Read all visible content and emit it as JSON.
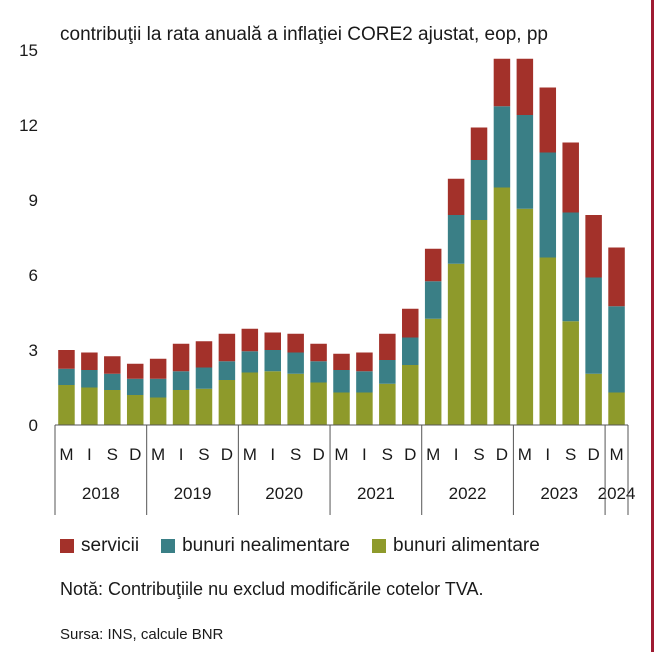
{
  "chart_data": {
    "type": "bar",
    "stacked": true,
    "title": "contribuţii la rata anuală a inflaţiei CORE2 ajustat, eop, pp",
    "ylim": [
      0,
      15
    ],
    "yticks": [
      0,
      3,
      6,
      9,
      12,
      15
    ],
    "ytick_labels": [
      "0",
      "3",
      "6",
      "9",
      "12",
      "15"
    ],
    "categories": [
      "M",
      "I",
      "S",
      "D",
      "M",
      "I",
      "S",
      "D",
      "M",
      "I",
      "S",
      "D",
      "M",
      "I",
      "S",
      "D",
      "M",
      "I",
      "S",
      "D",
      "M",
      "I",
      "S",
      "D",
      "M"
    ],
    "years": [
      {
        "label": "2018",
        "count": 4
      },
      {
        "label": "2019",
        "count": 4
      },
      {
        "label": "2020",
        "count": 4
      },
      {
        "label": "2021",
        "count": 4
      },
      {
        "label": "2022",
        "count": 4
      },
      {
        "label": "2023",
        "count": 4
      },
      {
        "label": "2024",
        "count": 1
      }
    ],
    "series": [
      {
        "name": "bunuri alimentare",
        "color": "#8e9a2b",
        "values": [
          1.6,
          1.5,
          1.4,
          1.2,
          1.1,
          1.4,
          1.45,
          1.8,
          2.1,
          2.15,
          2.05,
          1.7,
          1.3,
          1.3,
          1.65,
          2.4,
          4.25,
          6.45,
          8.2,
          9.5,
          8.65,
          6.7,
          4.15,
          2.05,
          1.3
        ]
      },
      {
        "name": "bunuri nealimentare",
        "color": "#3a7f86",
        "values": [
          0.65,
          0.7,
          0.65,
          0.65,
          0.75,
          0.75,
          0.85,
          0.75,
          0.85,
          0.85,
          0.85,
          0.85,
          0.9,
          0.85,
          0.95,
          1.1,
          1.5,
          1.95,
          2.4,
          3.25,
          3.75,
          4.2,
          4.35,
          3.85,
          3.45
        ]
      },
      {
        "name": "servicii",
        "color": "#a3312a",
        "values": [
          0.75,
          0.7,
          0.7,
          0.6,
          0.8,
          1.1,
          1.05,
          1.1,
          0.9,
          0.7,
          0.75,
          0.7,
          0.65,
          0.75,
          1.05,
          1.15,
          1.3,
          1.45,
          1.3,
          1.9,
          2.25,
          2.6,
          2.8,
          2.5,
          2.35
        ]
      }
    ],
    "legend_position": "bottom",
    "grid": false
  },
  "legend": {
    "items": [
      {
        "label": "servicii",
        "color": "#a3312a"
      },
      {
        "label": "bunuri nealimentare",
        "color": "#3a7f86"
      },
      {
        "label": "bunuri alimentare",
        "color": "#8e9a2b"
      }
    ]
  },
  "note": "Notă: Contribuţiile nu exclud modificările cotelor TVA.",
  "source": "Sursa: INS, calcule BNR",
  "colors": {
    "frame": "#9e1b32",
    "axis": "#555555"
  }
}
